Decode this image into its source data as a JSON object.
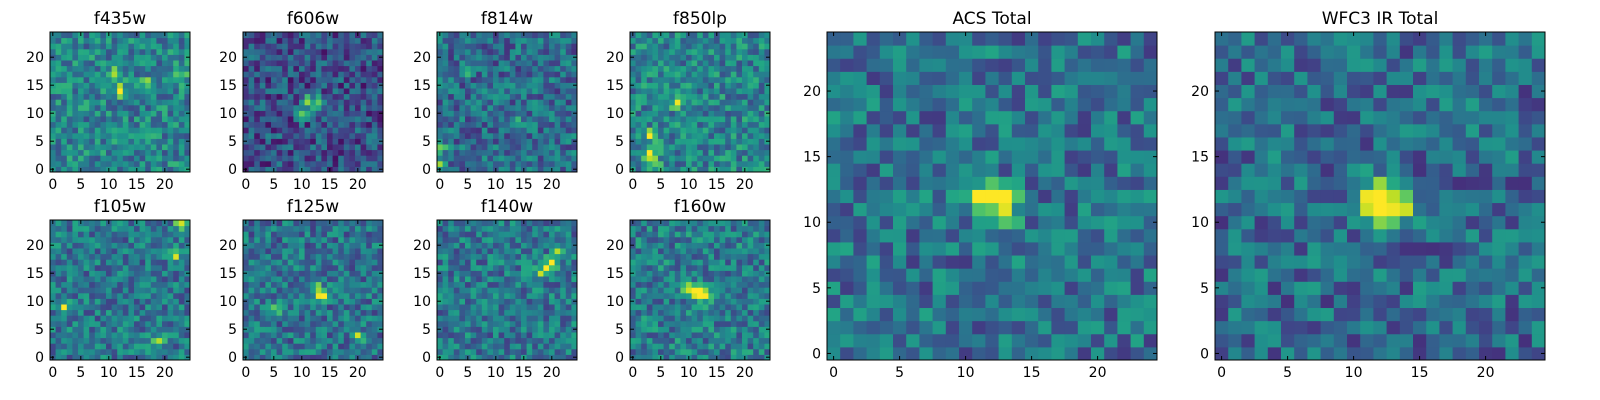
{
  "figure": {
    "description": "Grid of heatmap image cutouts in multiple filters (viridis colormap)",
    "colormap": "viridis"
  },
  "chart_data": [
    {
      "type": "heatmap",
      "title": "f435w",
      "xlim": [
        0,
        25
      ],
      "ylim": [
        0,
        25
      ],
      "xticks": [
        0,
        5,
        10,
        15,
        20
      ],
      "yticks": [
        0,
        5,
        10,
        15,
        20
      ],
      "grid_size": [
        25,
        25
      ],
      "peaks": [
        [
          12,
          14
        ],
        [
          17,
          15
        ],
        [
          11,
          17
        ],
        [
          23,
          17
        ]
      ],
      "background": 0.45
    },
    {
      "type": "heatmap",
      "title": "f606w",
      "xlim": [
        0,
        25
      ],
      "ylim": [
        0,
        25
      ],
      "xticks": [
        0,
        5,
        10,
        15,
        20
      ],
      "yticks": [
        0,
        5,
        10,
        15,
        20
      ],
      "grid_size": [
        25,
        25
      ],
      "peaks": [
        [
          11,
          12
        ],
        [
          13,
          12
        ],
        [
          10,
          10
        ]
      ],
      "background": 0.25
    },
    {
      "type": "heatmap",
      "title": "f814w",
      "xlim": [
        0,
        25
      ],
      "ylim": [
        0,
        25
      ],
      "xticks": [
        0,
        5,
        10,
        15,
        20
      ],
      "yticks": [
        0,
        5,
        10,
        15,
        20
      ],
      "grid_size": [
        25,
        25
      ],
      "peaks": [
        [
          0,
          4
        ],
        [
          5,
          18
        ],
        [
          0,
          1
        ],
        [
          14,
          8
        ]
      ],
      "background": 0.35
    },
    {
      "type": "heatmap",
      "title": "f850lp",
      "xlim": [
        0,
        25
      ],
      "ylim": [
        0,
        25
      ],
      "xticks": [
        0,
        5,
        10,
        15,
        20
      ],
      "yticks": [
        0,
        5,
        10,
        15,
        20
      ],
      "grid_size": [
        25,
        25
      ],
      "peaks": [
        [
          8,
          12
        ],
        [
          3,
          3
        ],
        [
          4,
          1
        ],
        [
          3,
          6
        ]
      ],
      "background": 0.45
    },
    {
      "type": "heatmap",
      "title": "f105w",
      "xlim": [
        0,
        25
      ],
      "ylim": [
        0,
        25
      ],
      "xticks": [
        0,
        5,
        10,
        15,
        20
      ],
      "yticks": [
        0,
        5,
        10,
        15,
        20
      ],
      "grid_size": [
        25,
        25
      ],
      "peaks": [
        [
          23,
          24
        ],
        [
          19,
          3
        ],
        [
          2,
          9
        ],
        [
          22,
          18
        ]
      ],
      "background": 0.4
    },
    {
      "type": "heatmap",
      "title": "f125w",
      "xlim": [
        0,
        25
      ],
      "ylim": [
        0,
        25
      ],
      "xticks": [
        0,
        5,
        10,
        15,
        20
      ],
      "yticks": [
        0,
        5,
        10,
        15,
        20
      ],
      "grid_size": [
        25,
        25
      ],
      "peaks": [
        [
          13,
          12
        ],
        [
          20,
          4
        ],
        [
          14,
          11
        ],
        [
          6,
          9
        ]
      ],
      "background": 0.38
    },
    {
      "type": "heatmap",
      "title": "f140w",
      "xlim": [
        0,
        25
      ],
      "ylim": [
        0,
        25
      ],
      "xticks": [
        0,
        5,
        10,
        15,
        20
      ],
      "yticks": [
        0,
        5,
        10,
        15,
        20
      ],
      "grid_size": [
        25,
        25
      ],
      "peaks": [
        [
          20,
          17
        ],
        [
          19,
          16
        ],
        [
          21,
          19
        ],
        [
          18,
          15
        ]
      ],
      "background": 0.4
    },
    {
      "type": "heatmap",
      "title": "f160w",
      "xlim": [
        0,
        25
      ],
      "ylim": [
        0,
        25
      ],
      "xticks": [
        0,
        5,
        10,
        15,
        20
      ],
      "yticks": [
        0,
        5,
        10,
        15,
        20
      ],
      "grid_size": [
        25,
        25
      ],
      "peaks": [
        [
          11,
          12
        ],
        [
          12,
          11
        ],
        [
          13,
          11
        ],
        [
          10,
          12
        ]
      ],
      "background": 0.42
    },
    {
      "type": "heatmap",
      "title": "ACS Total",
      "xlim": [
        0,
        25
      ],
      "ylim": [
        0,
        25
      ],
      "xticks": [
        0,
        5,
        10,
        15,
        20
      ],
      "yticks": [
        0,
        5,
        10,
        15,
        20
      ],
      "grid_size": [
        25,
        25
      ],
      "peaks": [
        [
          12,
          12
        ],
        [
          13,
          12
        ],
        [
          13,
          11
        ],
        [
          11,
          12
        ]
      ],
      "background": 0.38
    },
    {
      "type": "heatmap",
      "title": "WFC3 IR Total",
      "xlim": [
        0,
        25
      ],
      "ylim": [
        0,
        25
      ],
      "xticks": [
        0,
        5,
        10,
        15,
        20
      ],
      "yticks": [
        0,
        5,
        10,
        15,
        20
      ],
      "grid_size": [
        25,
        25
      ],
      "peaks": [
        [
          11,
          12
        ],
        [
          12,
          11
        ],
        [
          13,
          11
        ],
        [
          12,
          12
        ],
        [
          14,
          11
        ]
      ],
      "background": 0.35
    }
  ]
}
